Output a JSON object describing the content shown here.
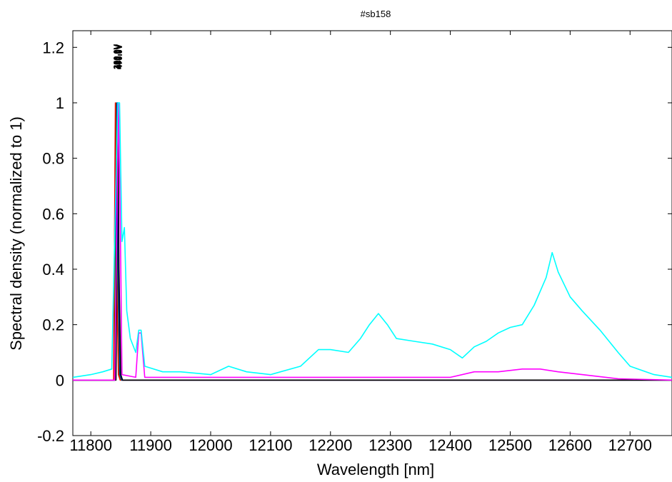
{
  "chart_data": {
    "type": "line",
    "title": "#sb158",
    "xlabel": "Wavelength [nm]",
    "ylabel": "Spectral density (normalized to 1)",
    "xlim": [
      11770,
      12770
    ],
    "ylim": [
      -0.2,
      1.26
    ],
    "xticks": [
      11800,
      11900,
      12000,
      12100,
      12200,
      12300,
      12400,
      12500,
      12600,
      12700
    ],
    "yticks": [
      -0.2,
      0,
      0.2,
      0.4,
      0.6,
      0.8,
      1,
      1.2
    ],
    "ytick_labels": [
      "-0.2",
      "0",
      "0.2",
      "0.4",
      "0.6",
      "0.8",
      "1",
      "1.2"
    ],
    "peak_labels": [
      "300.0V",
      "350.0V",
      "400.0V",
      "420.0V",
      "440.0V",
      "460.0V",
      "470.0V"
    ],
    "grid": false,
    "legend": "none",
    "series": [
      {
        "color": "#ff0000",
        "x": [
          11770,
          11838,
          11841,
          11843,
          11846,
          11849,
          11900,
          12770
        ],
        "values": [
          0,
          0,
          1.0,
          0.4,
          0.02,
          0,
          0,
          0
        ]
      },
      {
        "color": "#008000",
        "x": [
          11770,
          11840,
          11843,
          11845,
          11848,
          11851,
          11900,
          12770
        ],
        "values": [
          0,
          0,
          1.0,
          0.4,
          0.02,
          0,
          0,
          0
        ]
      },
      {
        "color": "#0000ff",
        "x": [
          11770,
          11841,
          11844,
          11846,
          11849,
          11852,
          11900,
          12770
        ],
        "values": [
          0,
          0,
          1.0,
          0.4,
          0.02,
          0,
          0,
          0
        ]
      },
      {
        "color": "#000000",
        "x": [
          11770,
          11842,
          11845,
          11847,
          11850,
          11853,
          11900,
          12770
        ],
        "values": [
          0,
          0,
          1.0,
          0.4,
          0.02,
          0,
          0,
          0
        ]
      },
      {
        "color": "#ff00ff",
        "x": [
          11770,
          11840,
          11846,
          11849,
          11852,
          11875,
          11880,
          11884,
          11890,
          12400,
          12440,
          12480,
          12520,
          12550,
          12580,
          12620,
          12680,
          12770
        ],
        "values": [
          0,
          0,
          1.0,
          0.6,
          0.02,
          0.01,
          0.17,
          0.17,
          0.01,
          0.01,
          0.03,
          0.03,
          0.04,
          0.04,
          0.03,
          0.02,
          0.005,
          0
        ]
      },
      {
        "color": "#00ffff",
        "x": [
          11770,
          11800,
          11820,
          11835,
          11845,
          11848,
          11852,
          11856,
          11860,
          11866,
          11875,
          11880,
          11884,
          11890,
          11920,
          11950,
          12000,
          12030,
          12060,
          12100,
          12150,
          12180,
          12200,
          12230,
          12250,
          12265,
          12280,
          12295,
          12310,
          12340,
          12370,
          12400,
          12420,
          12440,
          12460,
          12480,
          12500,
          12520,
          12540,
          12560,
          12570,
          12580,
          12600,
          12620,
          12650,
          12680,
          12700,
          12740,
          12770
        ],
        "values": [
          0.01,
          0.02,
          0.03,
          0.04,
          1.0,
          1.0,
          0.5,
          0.55,
          0.25,
          0.15,
          0.1,
          0.18,
          0.18,
          0.05,
          0.03,
          0.03,
          0.02,
          0.05,
          0.03,
          0.02,
          0.05,
          0.11,
          0.11,
          0.1,
          0.15,
          0.2,
          0.24,
          0.2,
          0.15,
          0.14,
          0.13,
          0.11,
          0.08,
          0.12,
          0.14,
          0.17,
          0.19,
          0.2,
          0.27,
          0.37,
          0.46,
          0.39,
          0.3,
          0.25,
          0.18,
          0.1,
          0.05,
          0.02,
          0.01
        ]
      }
    ]
  }
}
